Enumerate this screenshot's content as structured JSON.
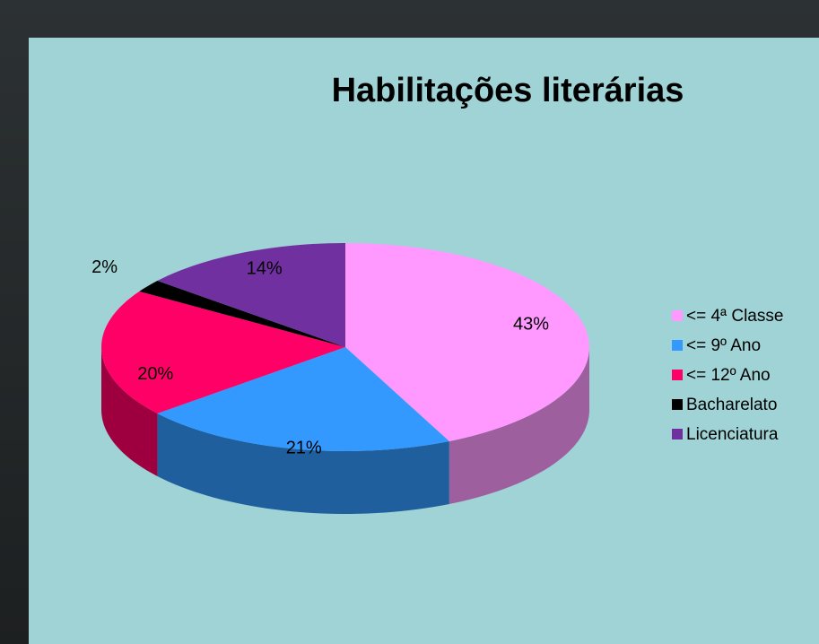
{
  "chart_data": {
    "type": "pie3d",
    "title": "Habilitações literárias",
    "categories": [
      "<= 4ª Classe",
      "<= 9º Ano",
      "<= 12º Ano",
      "Bacharelato",
      "Licenciatura"
    ],
    "values": [
      43,
      21,
      20,
      2,
      14
    ],
    "value_labels": [
      "43%",
      "21%",
      "20%",
      "2%",
      "14%"
    ],
    "colors": [
      "#ff99ff",
      "#3399ff",
      "#ff0066",
      "#000000",
      "#7030a0"
    ],
    "legend": "right"
  }
}
